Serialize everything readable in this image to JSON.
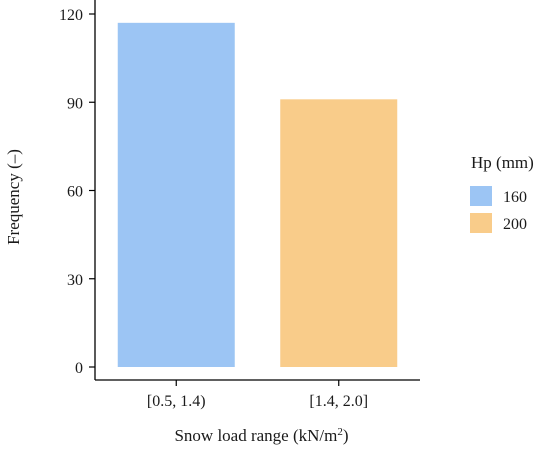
{
  "chart_data": {
    "type": "bar",
    "title": "",
    "xlabel": "Snow load range (kN/m",
    "xlabel_superscript": "2",
    "xlabel_suffix": ")",
    "ylabel": "Frequency (–)",
    "ylim": [
      0,
      120
    ],
    "yticks": [
      "0",
      "30",
      "60",
      "90",
      "120"
    ],
    "grid": false,
    "legend_placement": "right",
    "legend_title": "Hp (mm)",
    "bars": [
      {
        "category": "[0.5, 1.4)",
        "value": 117,
        "series": "160",
        "color": "#9cc5f4"
      },
      {
        "category": "[1.4, 2.0]",
        "value": 91,
        "series": "200",
        "color": "#f9cc8a"
      }
    ],
    "legend": [
      {
        "label": "160",
        "color": "#9cc5f4"
      },
      {
        "label": "200",
        "color": "#f9cc8a"
      }
    ]
  }
}
